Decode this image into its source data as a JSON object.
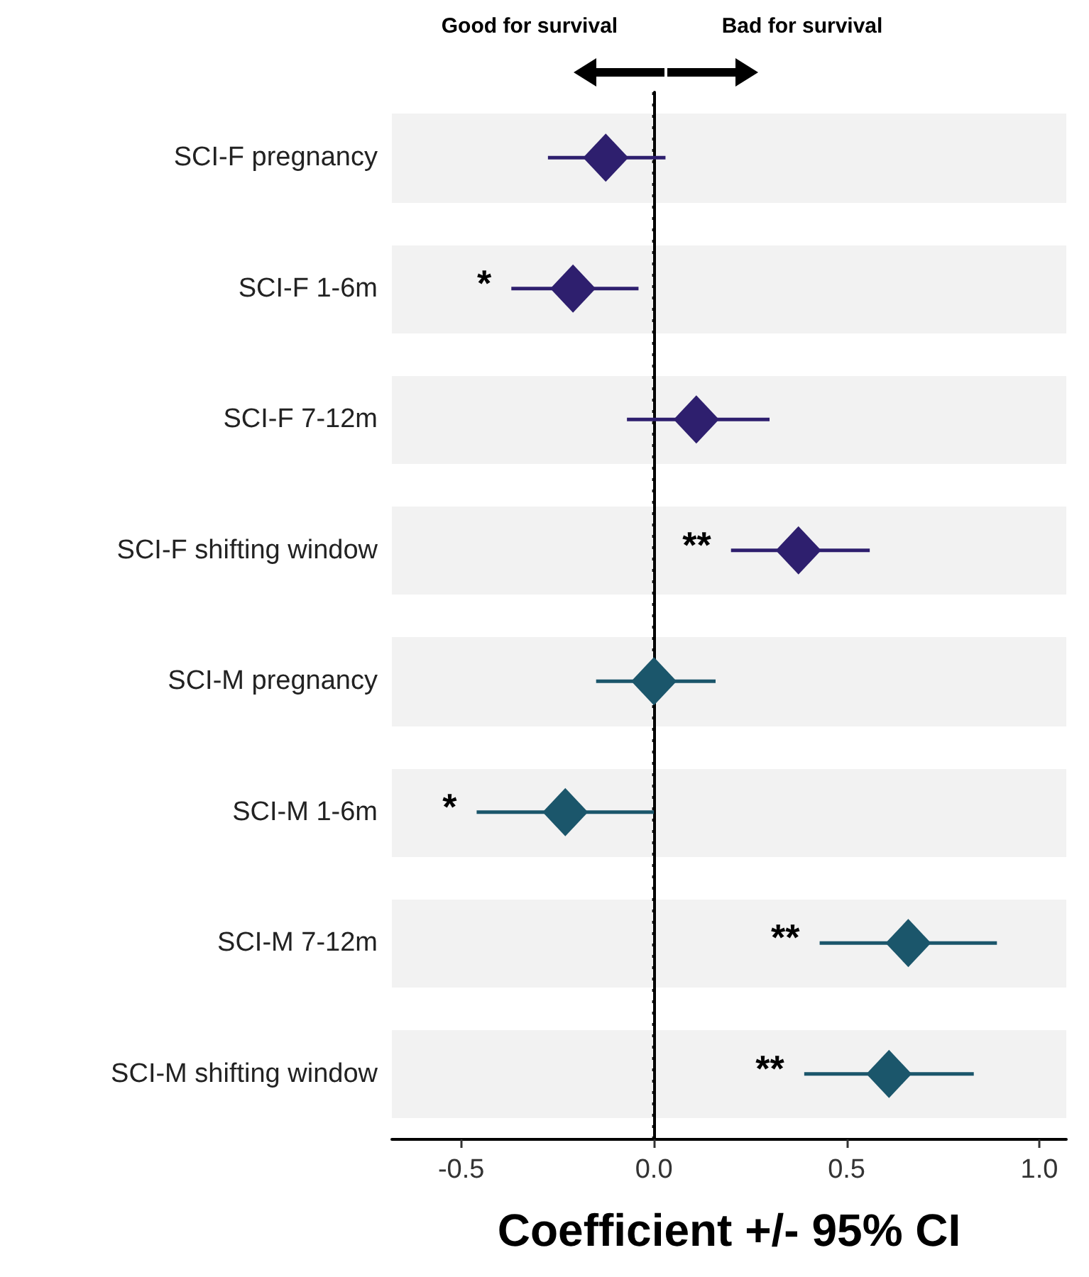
{
  "chart_data": {
    "type": "scatter",
    "orientation": "horizontal",
    "xlabel": "Coefficient +/- 95% CI",
    "categories": [
      "SCI-F pregnancy",
      "SCI-F 1-6m",
      "SCI-F 7-12m",
      "SCI-F shifting window",
      "SCI-M pregnancy",
      "SCI-M 1-6m",
      "SCI-M 7-12m",
      "SCI-M shifting window"
    ],
    "values": [
      -0.125,
      -0.21,
      0.11,
      0.375,
      0.0,
      -0.23,
      0.66,
      0.61
    ],
    "errors": [
      [
        -0.275,
        0.03
      ],
      [
        -0.37,
        -0.04
      ],
      [
        -0.07,
        0.3
      ],
      [
        0.2,
        0.56
      ],
      [
        -0.15,
        0.16
      ],
      [
        -0.46,
        0.0
      ],
      [
        0.43,
        0.89
      ],
      [
        0.39,
        0.83
      ]
    ],
    "colors": [
      "#2e1f6e",
      "#2e1f6e",
      "#2e1f6e",
      "#2e1f6e",
      "#1b566b",
      "#1b566b",
      "#1b566b",
      "#1b566b"
    ],
    "marker": "diamond",
    "xlim": [
      -0.68,
      1.07
    ],
    "xticks": [
      -0.5,
      {
        "value": 0,
        "label": "0.0"
      },
      0.5,
      {
        "value": 1,
        "label": "1.0"
      }
    ],
    "ref_lines": [
      {
        "axis": "x",
        "value": 0,
        "line_style": "dotted",
        "color": "#000000"
      }
    ],
    "grid": false,
    "value_labels": [
      null,
      "*",
      null,
      "**",
      null,
      "*",
      "**",
      "**"
    ],
    "annotations": [
      "Good for survival",
      "Bad for survival"
    ]
  }
}
